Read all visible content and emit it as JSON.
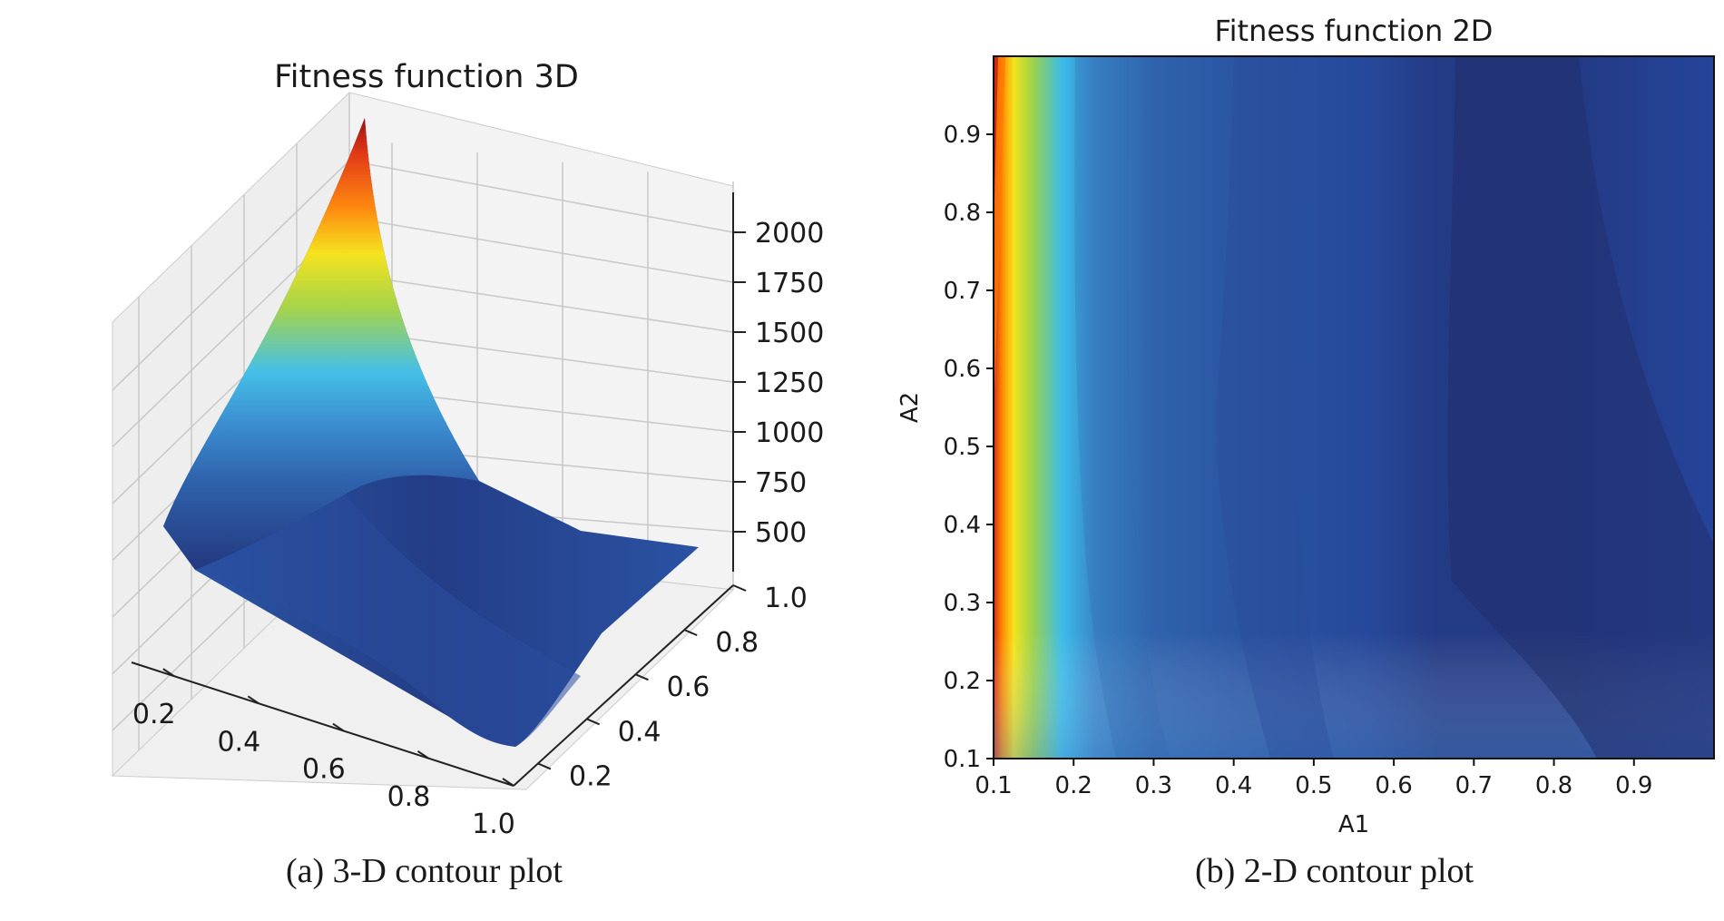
{
  "captions": {
    "a": "(a) 3-D contour plot",
    "b": "(b) 2-D contour plot"
  },
  "chart_data": [
    {
      "type": "surface3d",
      "title": "Fitness function 3D",
      "xlabel": "",
      "ylabel": "",
      "zlabel": "",
      "x_ticks": [
        0.2,
        0.4,
        0.6,
        0.8,
        1.0
      ],
      "y_ticks": [
        0.2,
        0.4,
        0.6,
        0.8,
        1.0
      ],
      "z_ticks": [
        500,
        750,
        1000,
        1250,
        1500,
        1750,
        2000
      ],
      "xlim": [
        0.1,
        1.0
      ],
      "ylim": [
        0.1,
        1.0
      ],
      "zlim": [
        300,
        2200
      ],
      "colormap": "jet",
      "grid": true,
      "surface_corners": [
        {
          "x": 0.1,
          "y": 1.0,
          "z": 2150
        },
        {
          "x": 0.1,
          "y": 0.1,
          "z": 900
        },
        {
          "x": 1.0,
          "y": 0.1,
          "z": 300
        },
        {
          "x": 1.0,
          "y": 1.0,
          "z": 420
        }
      ]
    },
    {
      "type": "contour",
      "title": "Fitness function 2D",
      "xlabel": "A1",
      "ylabel": "A2",
      "xlim": [
        0.1,
        1.0
      ],
      "ylim": [
        0.1,
        1.0
      ],
      "x_ticks": [
        0.1,
        0.2,
        0.3,
        0.4,
        0.5,
        0.6,
        0.7,
        0.8,
        0.9
      ],
      "y_ticks": [
        0.1,
        0.2,
        0.3,
        0.4,
        0.5,
        0.6,
        0.7,
        0.8,
        0.9
      ],
      "colormap": "jet",
      "color_stops": [
        "#c81e14",
        "#ff7a00",
        "#f2e21a",
        "#8fd04a",
        "#36b8ea",
        "#3a7fc4",
        "#2f5ea7",
        "#27499a",
        "#233a83",
        "#222f6e"
      ]
    }
  ]
}
